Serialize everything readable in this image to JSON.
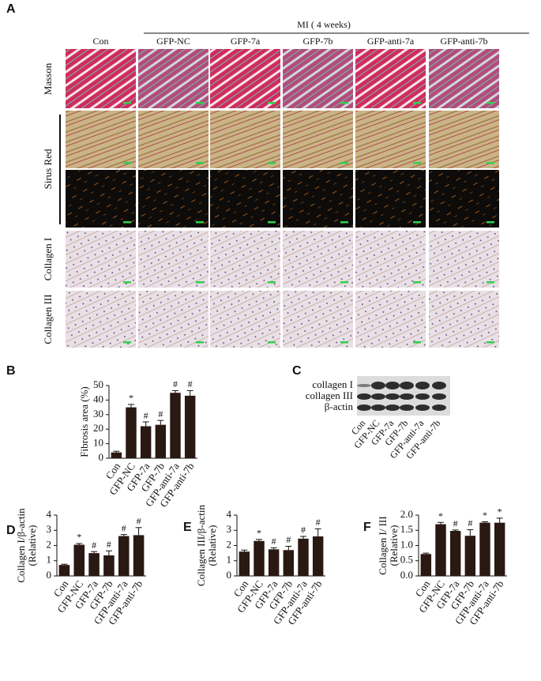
{
  "panel_a": {
    "label": "A",
    "group": "MI ( 4 weeks)",
    "columns": [
      "Con",
      "GFP-NC",
      "GFP-7a",
      "GFP-7b",
      "GFP-anti-7a",
      "GFP-anti-7b"
    ],
    "rows": [
      "Masson",
      "Sirus Red",
      "Collagen I",
      "Collagen III"
    ]
  },
  "panel_c": {
    "label": "C",
    "bands": [
      "collagen I",
      "collagen III",
      "β-actin"
    ],
    "lanes": [
      "Con",
      "GFP-NC",
      "GFP-7a",
      "GFP-7b",
      "GFP-anti-7a",
      "GFP-anti-7b"
    ]
  },
  "chart_data": [
    {
      "type": "bar",
      "label": "B",
      "ylabel": [
        "Fibrosis area (%)"
      ],
      "color": "#2a1812",
      "categories": [
        "Con",
        "GFP-NC",
        "GFP-7a",
        "GFP-7b",
        "GFP-anti-7a",
        "GFP-anti-7b"
      ],
      "values": [
        4,
        35,
        22,
        23,
        45,
        43
      ],
      "errors": [
        0.8,
        2,
        3,
        3,
        1.5,
        3.5
      ],
      "annotations": [
        null,
        "*",
        "#",
        "#",
        "#",
        "#"
      ],
      "ylim": [
        0,
        50
      ],
      "yticks": [
        0,
        10,
        20,
        30,
        40,
        50
      ]
    },
    {
      "type": "bar",
      "label": "D",
      "ylabel": [
        "Collagen I/β-actin",
        "(Relative)"
      ],
      "color": "#2a1812",
      "categories": [
        "Con",
        "GFP-NC",
        "GFP-7a",
        "GFP-7b",
        "GFP-anti-7a",
        "GFP-anti-7b"
      ],
      "values": [
        0.72,
        2.05,
        1.5,
        1.35,
        2.62,
        2.68
      ],
      "errors": [
        0.05,
        0.08,
        0.1,
        0.3,
        0.1,
        0.5
      ],
      "annotations": [
        null,
        "*",
        "#",
        "#",
        "#",
        "#"
      ],
      "ylim": [
        0,
        4
      ],
      "yticks": [
        0,
        1,
        2,
        3,
        4
      ]
    },
    {
      "type": "bar",
      "label": "E",
      "ylabel": [
        "Collagen III/β-actin",
        "(Relative)"
      ],
      "color": "#2a1812",
      "categories": [
        "Con",
        "GFP-NC",
        "GFP-7a",
        "GFP-7b",
        "GFP-anti-7a",
        "GFP-anti-7b"
      ],
      "values": [
        1.6,
        2.3,
        1.75,
        1.7,
        2.45,
        2.6
      ],
      "errors": [
        0.1,
        0.1,
        0.1,
        0.25,
        0.15,
        0.5
      ],
      "annotations": [
        null,
        "*",
        "#",
        "#",
        "#",
        "#"
      ],
      "ylim": [
        0,
        4
      ],
      "yticks": [
        0,
        1,
        2,
        3,
        4
      ]
    },
    {
      "type": "bar",
      "label": "F",
      "ylabel": [
        "Collagen I/ III",
        "(Relative)"
      ],
      "color": "#2a1812",
      "categories": [
        "Con",
        "GFP-NC",
        "GFP-7a",
        "GFP-7b",
        "GFP-anti-7a",
        "GFP-anti-7b"
      ],
      "values": [
        0.72,
        1.7,
        1.48,
        1.32,
        1.75,
        1.75
      ],
      "errors": [
        0.03,
        0.06,
        0.03,
        0.2,
        0.03,
        0.15
      ],
      "annotations": [
        null,
        "*",
        "#",
        "#",
        "*",
        "*"
      ],
      "ylim": [
        0,
        2
      ],
      "yticks": [
        {
          "value": 0,
          "label": "0.0"
        },
        {
          "value": 0.5,
          "label": "0.5"
        },
        {
          "value": 1,
          "label": "1.0"
        },
        {
          "value": 1.5,
          "label": "1.5"
        },
        {
          "value": 2,
          "label": "2.0"
        }
      ]
    }
  ]
}
